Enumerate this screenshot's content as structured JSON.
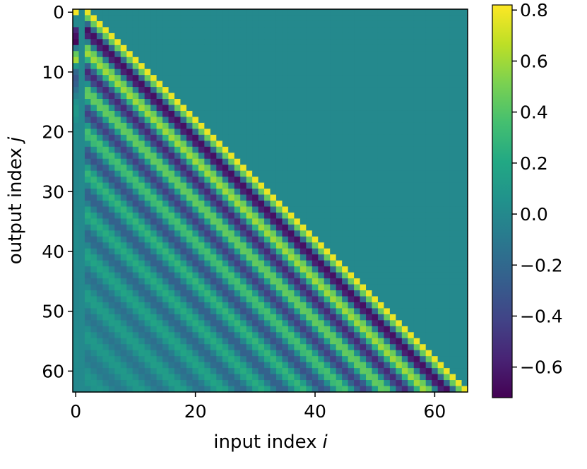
{
  "chart_data": {
    "type": "heatmap",
    "title": "",
    "xlabel": "input index",
    "xlabel_var": "i",
    "ylabel": "output index",
    "ylabel_var": "j",
    "rows": 64,
    "cols": 66,
    "x_ticks": [
      "0",
      "20",
      "40",
      "60"
    ],
    "y_ticks": [
      "0",
      "10",
      "20",
      "30",
      "40",
      "50",
      "60"
    ],
    "colorbar": {
      "range": [
        -0.72,
        0.82
      ],
      "ticks": [
        "0.8",
        "0.6",
        "0.4",
        "0.2",
        "0.0",
        "−0.2",
        "−0.4",
        "−0.6"
      ],
      "colormap": "viridis"
    },
    "structure": {
      "description_values": {
        "diagonal_peak": 0.8,
        "first_negative_band": -0.6,
        "background_upper_triangle": 0.0
      }
    }
  }
}
